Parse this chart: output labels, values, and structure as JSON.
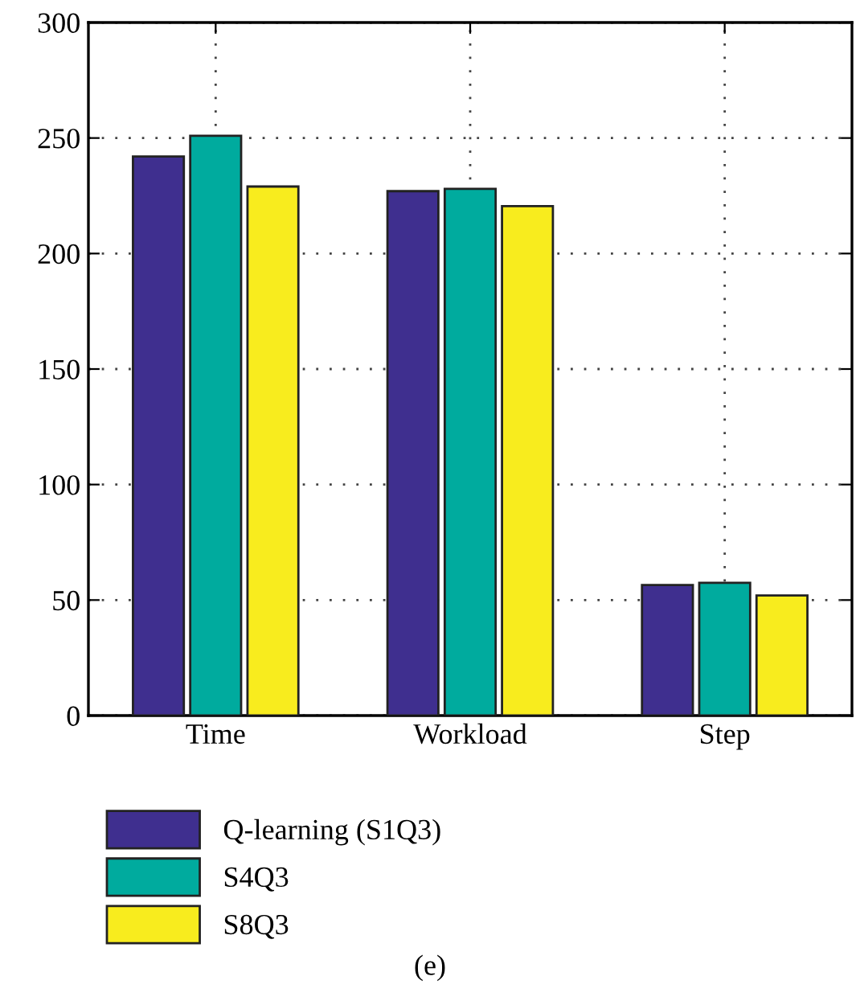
{
  "chart_data": {
    "type": "bar",
    "categories": [
      "Time",
      "Workload",
      "Step"
    ],
    "series": [
      {
        "name": "Q-learning (S1Q3)",
        "color": "#3f2f8f",
        "values": [
          242,
          227,
          56.5
        ]
      },
      {
        "name": "S4Q3",
        "color": "#00ab9e",
        "values": [
          251,
          228,
          57.5
        ]
      },
      {
        "name": "S8Q3",
        "color": "#f8ec1e",
        "values": [
          229,
          220.5,
          52
        ]
      }
    ],
    "ylim": [
      0,
      300
    ],
    "yticks": [
      0,
      50,
      100,
      150,
      200,
      250,
      300
    ],
    "grid": true,
    "legend": "bottom left",
    "annotations": [
      "(e)"
    ]
  }
}
